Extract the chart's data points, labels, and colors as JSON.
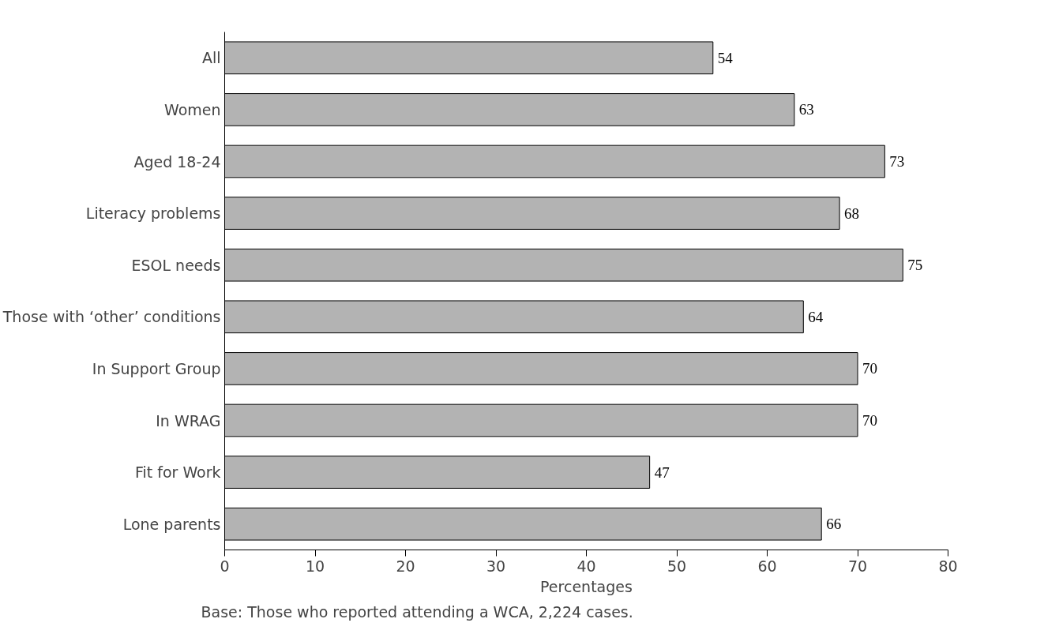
{
  "chart_data": {
    "type": "bar",
    "orientation": "horizontal",
    "categories": [
      "All",
      "Women",
      "Aged 18-24",
      "Literacy problems",
      "ESOL needs",
      "Those with ‘other’ conditions",
      "In Support Group",
      "In WRAG",
      "Fit for Work",
      "Lone parents"
    ],
    "values": [
      54,
      63,
      73,
      68,
      75,
      64,
      70,
      70,
      47,
      66
    ],
    "color": "#b3b3b3",
    "xlim": [
      0,
      80
    ],
    "xticks": [
      0,
      10,
      20,
      30,
      40,
      50,
      60,
      70,
      80
    ],
    "xlabel": "Percentages",
    "data_labels": true,
    "grid": false,
    "annotations": [
      "Base: Those who reported attending a WCA, 2,224 cases."
    ]
  }
}
